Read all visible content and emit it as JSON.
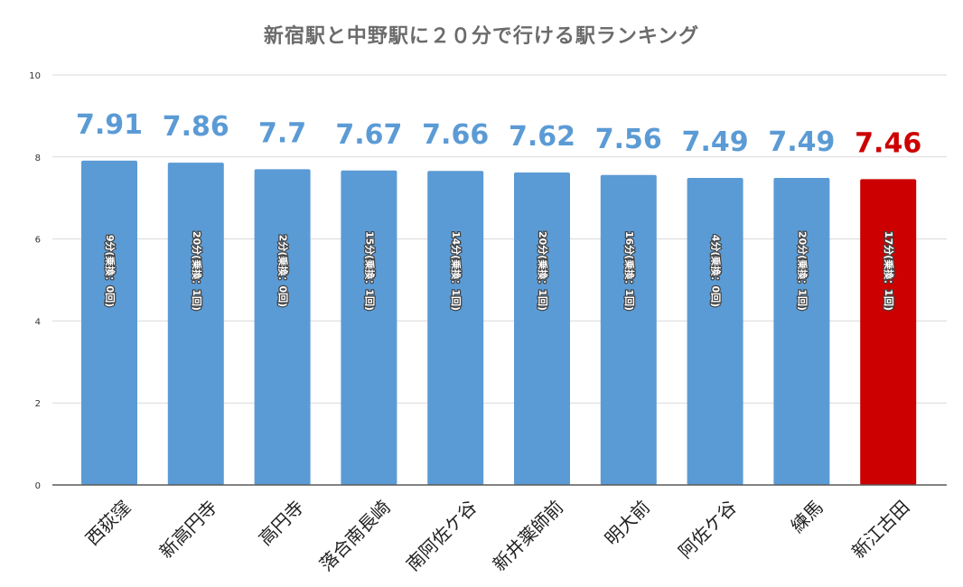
{
  "chart_data": {
    "type": "bar",
    "title": "新宿駅と中野駅に２０分で行ける駅ランキング",
    "categories": [
      "西荻窪",
      "新高円寺",
      "高円寺",
      "落合南長崎",
      "南阿佐ケ谷",
      "新井薬師前",
      "明大前",
      "阿佐ケ谷",
      "練馬",
      "新江古田"
    ],
    "values": [
      7.91,
      7.86,
      7.7,
      7.67,
      7.66,
      7.62,
      7.56,
      7.49,
      7.49,
      7.46
    ],
    "value_labels": [
      "7.91",
      "7.86",
      "7.7",
      "7.67",
      "7.66",
      "7.62",
      "7.56",
      "7.49",
      "7.49",
      "7.46"
    ],
    "bar_annotations": [
      "9分(乗換：0回)",
      "20分(乗換：1回)",
      "2分(乗換：0回)",
      "15分(乗換：1回)",
      "14分(乗換：1回)",
      "20分(乗換：1回)",
      "16分(乗換：1回)",
      "4分(乗換：0回)",
      "20分(乗換：1回)",
      "17分(乗換：1回)"
    ],
    "highlight_index": 9,
    "ylim": [
      0,
      10
    ],
    "yticks": [
      0,
      2,
      4,
      6,
      8,
      10
    ],
    "xlabel": "",
    "ylabel": "",
    "grid": true,
    "legend": "none",
    "colors": {
      "bar": "#5b9bd5",
      "highlight_bar": "#cc0000",
      "label": "#5b9bd5",
      "highlight_label": "#cc0000",
      "title": "#6b6b6b"
    }
  }
}
